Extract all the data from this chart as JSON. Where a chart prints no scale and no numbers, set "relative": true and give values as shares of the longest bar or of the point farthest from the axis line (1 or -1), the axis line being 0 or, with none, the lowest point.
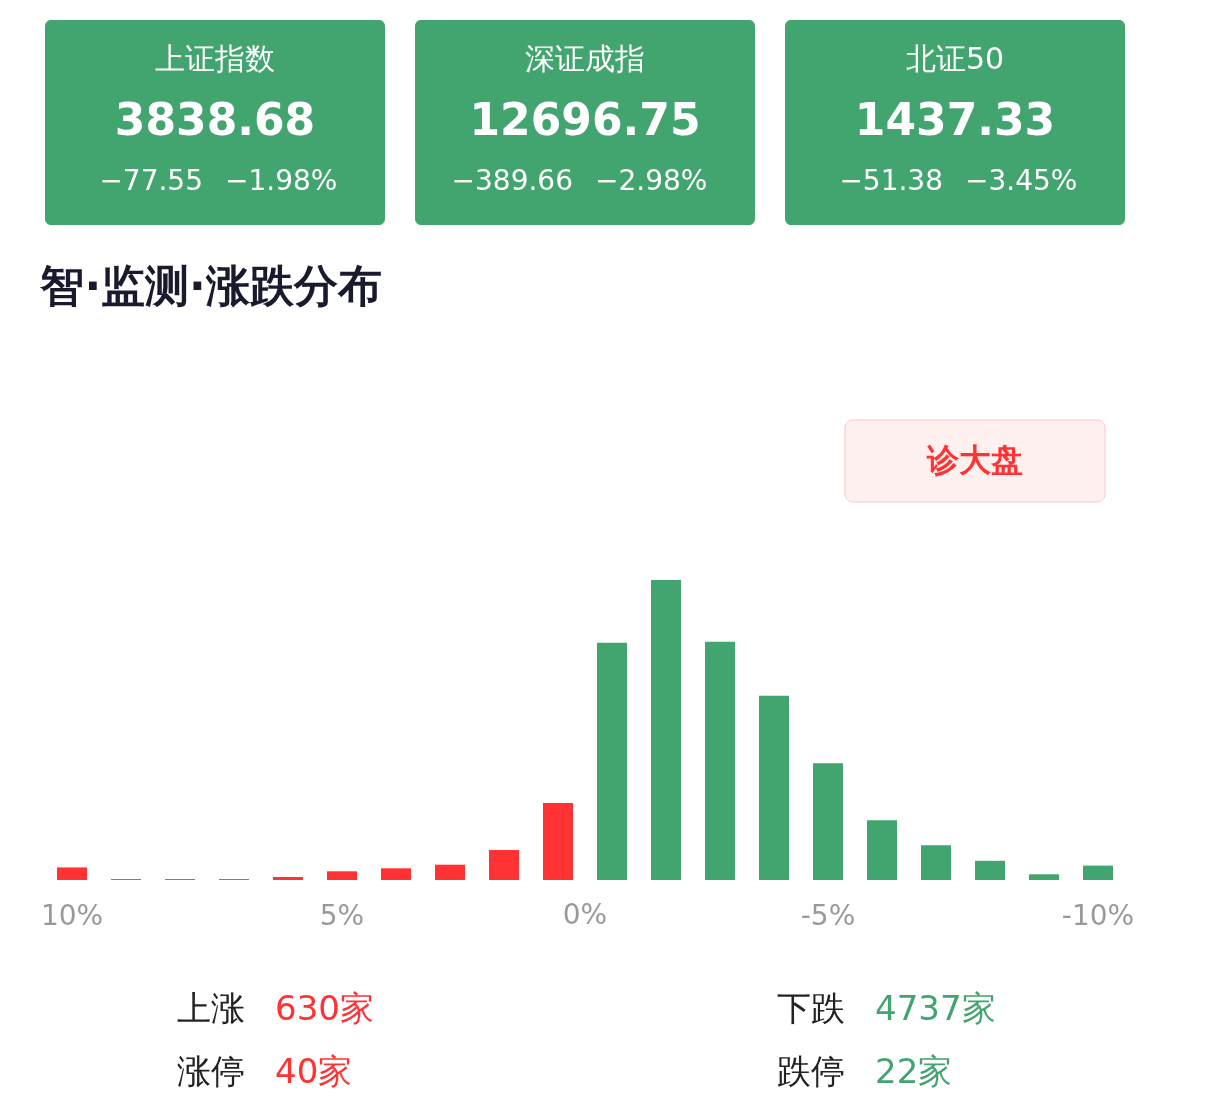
{
  "chart_data": [
    {
      "type": "other",
      "title": "上证指数",
      "annotations": [
        "3838.68",
        "−77.55",
        "−1.98%"
      ]
    },
    {
      "type": "other",
      "title": "深证成指",
      "annotations": [
        "12696.75",
        "−389.66",
        "−2.98%"
      ]
    },
    {
      "type": "other",
      "title": "北证50",
      "annotations": [
        "1437.33",
        "−51.38",
        "−3.45%"
      ]
    },
    {
      "type": "bar",
      "title": "智·监测·涨跌分布",
      "relative": true,
      "categories": [
        "10%",
        null,
        null,
        null,
        null,
        "5%",
        null,
        null,
        null,
        null,
        null,
        null,
        null,
        null,
        "-5%",
        null,
        null,
        null,
        null,
        "-10%"
      ],
      "values": [
        0.042,
        0.003,
        0.003,
        0.003,
        0.01,
        0.029,
        0.039,
        0.051,
        0.1,
        0.257,
        0.791,
        1,
        0.794,
        0.614,
        0.389,
        0.199,
        0.116,
        0.064,
        0.019,
        0.048
      ],
      "colors": [
        "#ff3333",
        "#ff3333",
        "#ff3333",
        "#ff3333",
        "#ff3333",
        "#ff3333",
        "#ff3333",
        "#ff3333",
        "#ff3333",
        "#ff3333",
        "#42a46f",
        "#42a46f",
        "#42a46f",
        "#42a46f",
        "#42a46f",
        "#42a46f",
        "#42a46f",
        "#42a46f",
        "#42a46f",
        "#42a46f"
      ],
      "grid": false,
      "legend": false,
      "annotations": [
        "0%",
        "诊大盘",
        "上涨",
        "630家",
        "涨停",
        "40家",
        "下跌",
        "4737家",
        "跌停",
        "22家"
      ]
    }
  ]
}
